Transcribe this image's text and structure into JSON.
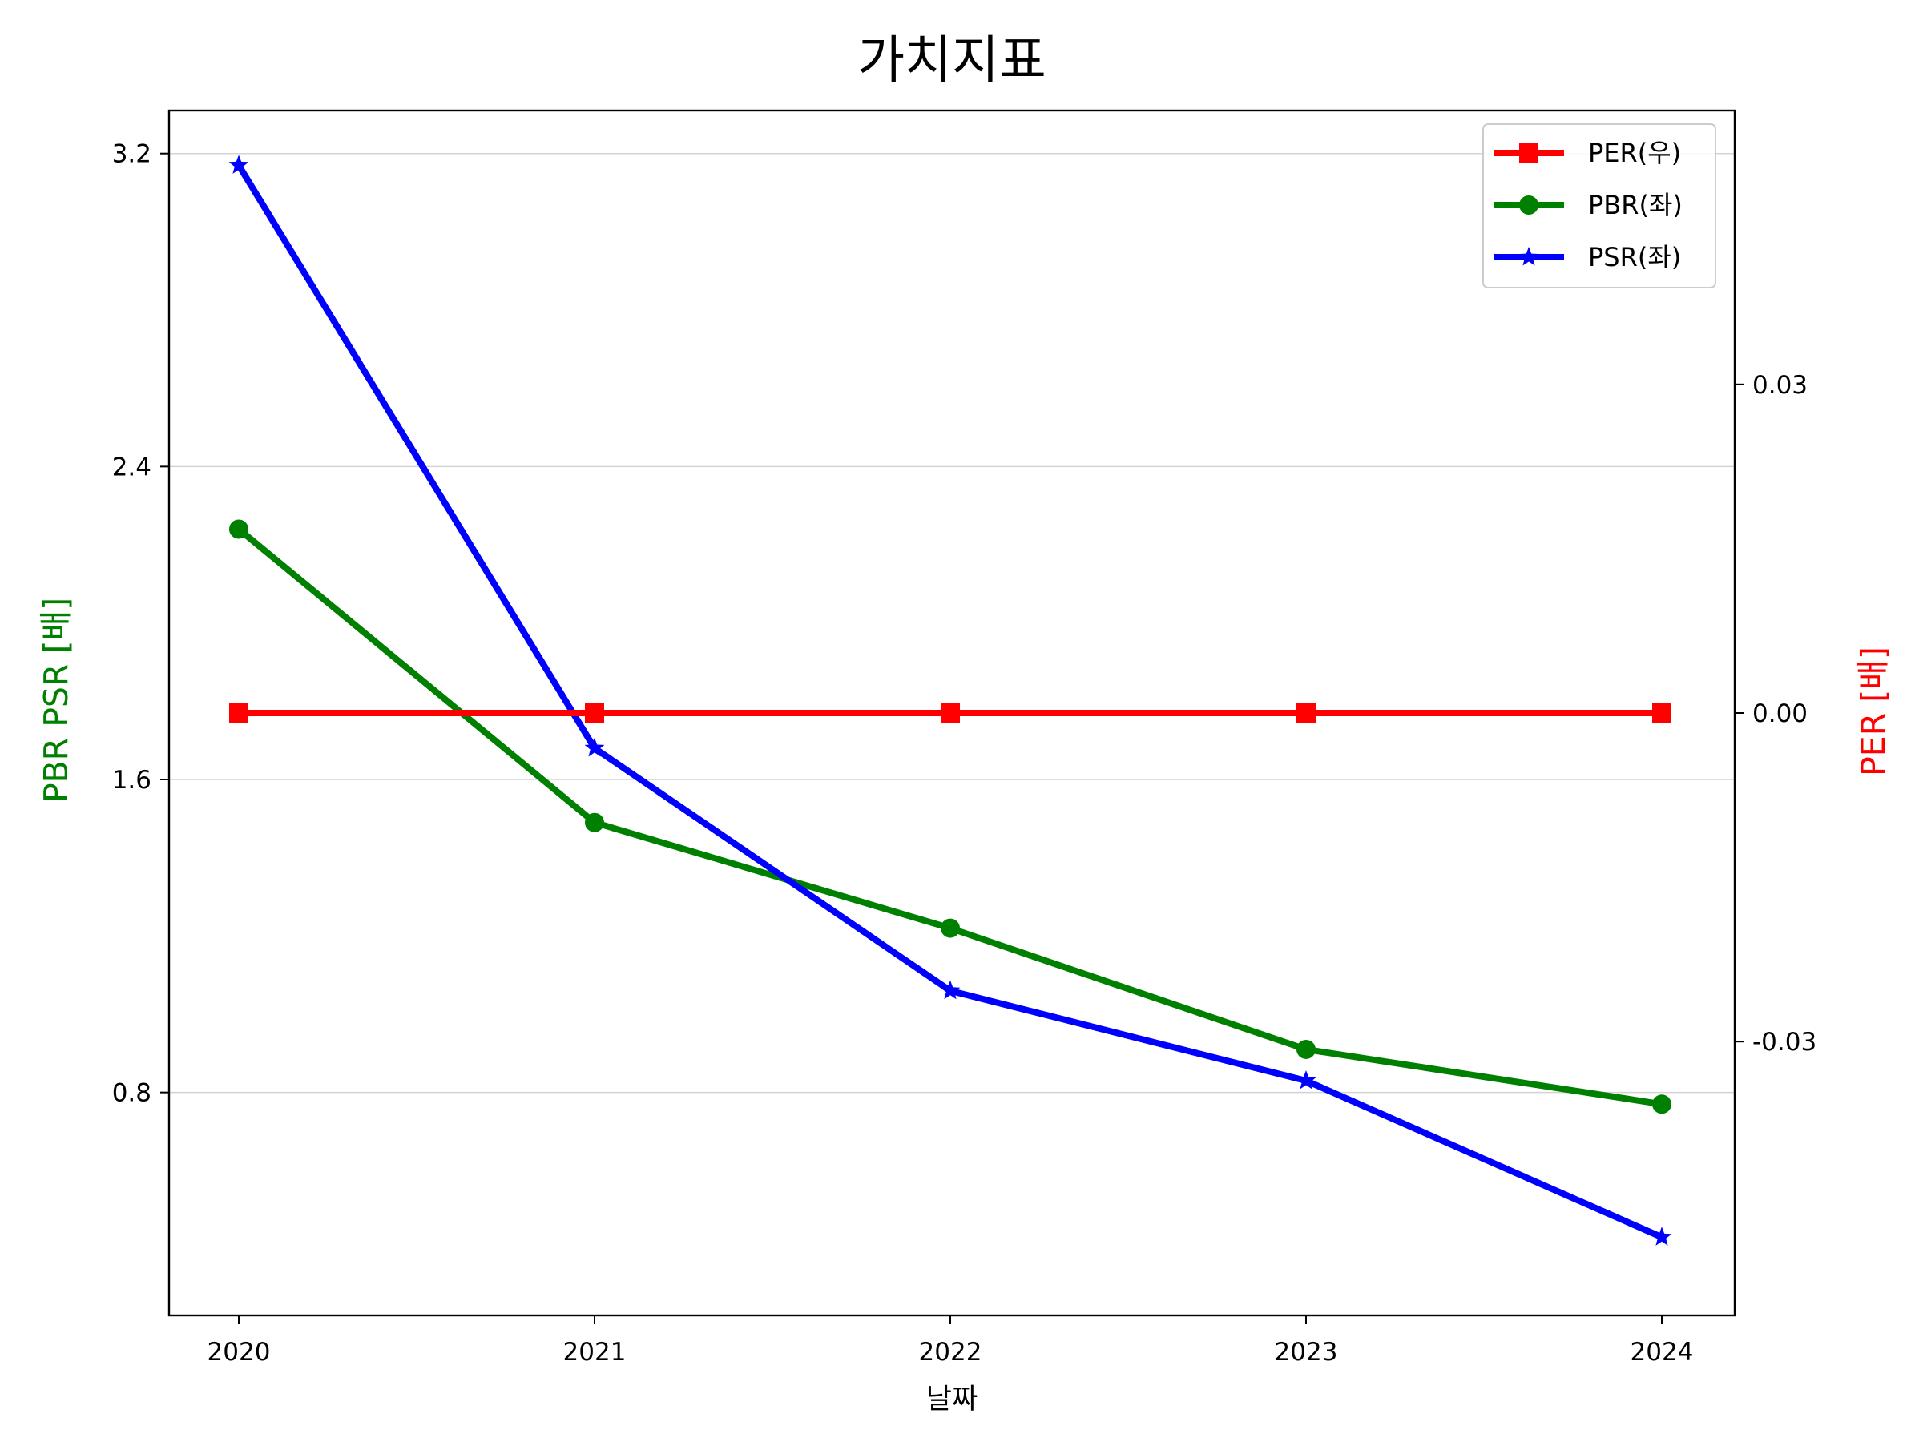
{
  "chart_data": {
    "type": "line",
    "title": "가치지표",
    "xlabel": "날짜",
    "ylabel_left": "PBR PSR [배]",
    "ylabel_right": "PER [배]",
    "x": [
      2020,
      2021,
      2022,
      2023,
      2024
    ],
    "x_tick_labels": [
      "2020",
      "2021",
      "2022",
      "2023",
      "2024"
    ],
    "ylim_left": [
      0.23,
      3.31
    ],
    "yticks_left": [
      0.8,
      1.6,
      2.4,
      3.2
    ],
    "ytick_labels_left": [
      "0.8",
      "1.6",
      "2.4",
      "3.2"
    ],
    "ylim_right": [
      -0.055,
      0.055
    ],
    "yticks_right": [
      -0.03,
      0.0,
      0.03
    ],
    "ytick_labels_right": [
      "-0.03",
      "0.00",
      "0.03"
    ],
    "grid": "horizontal",
    "legend_position": "top-right",
    "series": [
      {
        "name": "PER(우)",
        "axis": "right",
        "color": "#ff0000",
        "marker": "square",
        "values": [
          0,
          0,
          0,
          0,
          0
        ]
      },
      {
        "name": "PBR(좌)",
        "axis": "left",
        "color": "#008000",
        "marker": "circle",
        "values": [
          2.24,
          1.49,
          1.22,
          0.91,
          0.77
        ]
      },
      {
        "name": "PSR(좌)",
        "axis": "left",
        "color": "#0000ff",
        "marker": "star",
        "values": [
          3.17,
          1.68,
          1.06,
          0.83,
          0.43
        ]
      }
    ]
  }
}
